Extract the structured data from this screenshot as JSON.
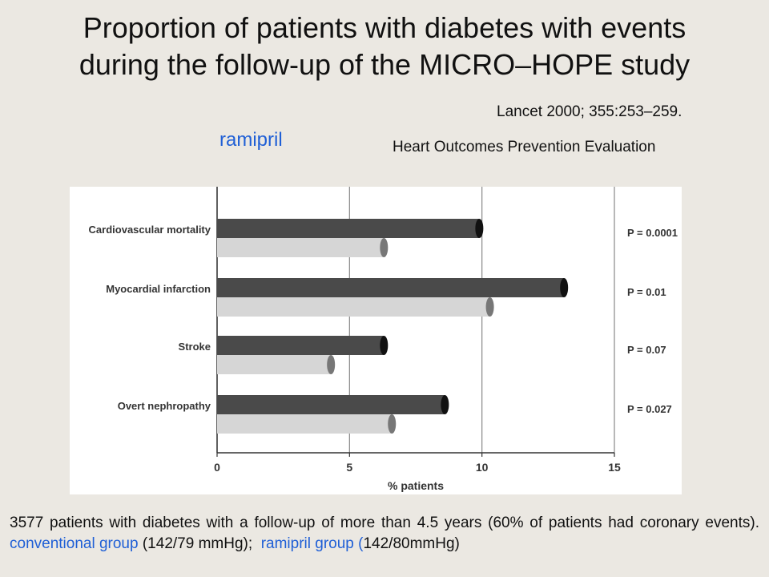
{
  "slide": {
    "title_line1": "Proportion of patients with diabetes with events",
    "title_line2": "during the follow-up of the MICRO–HOPE study",
    "citation": "Lancet 2000; 355:253–259.",
    "study_name": "Heart Outcomes Prevention Evaluation",
    "highlight_label": "ramipril",
    "footer": {
      "part1": "3577 patients with diabetes with a follow-up of more than 4.5 years (60% of patients had coronary events).",
      "conventional": "conventional group",
      "part2": "(142/79 mmHg);",
      "ramipril": "ramipril group (",
      "part3": "142/80mmHg)"
    },
    "colors": {
      "accent_blue": "#1f5fd6",
      "background": "#ebe8e2"
    }
  },
  "chart_data": {
    "type": "bar",
    "orientation": "horizontal",
    "categories": [
      "Cardiovascular mortality",
      "Myocardial infarction",
      "Stroke",
      "Overt nephropathy"
    ],
    "series": [
      {
        "values": [
          9.9,
          13.1,
          6.3,
          8.6
        ],
        "color": "#4a4a4a"
      },
      {
        "values": [
          6.3,
          10.3,
          4.3,
          6.6
        ],
        "color": "#d6d6d6"
      }
    ],
    "p_values": [
      "P = 0.0001",
      "P = 0.01",
      "P = 0.07",
      "P = 0.027"
    ],
    "xlabel": "% patients",
    "xticks": [
      "0",
      "5",
      "10",
      "15"
    ],
    "xlim": [
      0,
      15
    ],
    "grid": true
  }
}
